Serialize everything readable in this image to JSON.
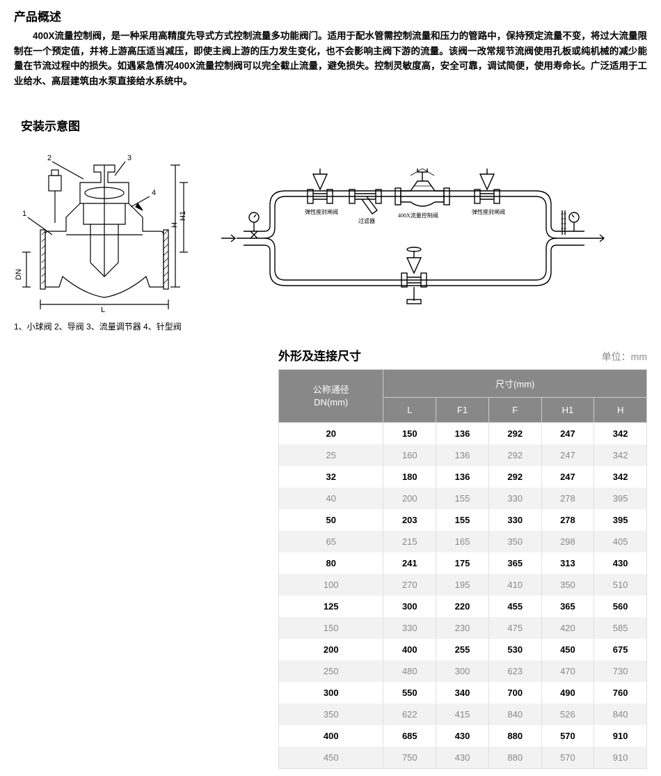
{
  "overview": {
    "title": "产品概述",
    "text": "400X流量控制阀，是一种采用高精度先导式方式控制流量多功能阀门。适用于配水管需控制流量和压力的管路中，保持预定流量不变，将过大流量限制在一个预定值，并将上游高压适当减压，即使主阀上游的压力发生变化，也不会影响主阀下游的流量。该阀一改常规节流阀使用孔板或纯机械的减少能量在节流过程中的损失。如遇紧急情况400X流量控制阀可以完全截止流量，避免损失。控制灵敏度高，安全可靠，调试简便，使用寿命长。广泛适用于工业给水、高层建筑由水泵直接给水系统中。"
  },
  "install": {
    "title": "安装示意图",
    "left_caption": "1、小球阀 2、导阀 3、流量调节器 4、针型阀",
    "left_labels": {
      "n1": "1",
      "n2": "2",
      "n3": "3",
      "n4": "4",
      "dn": "DN",
      "h": "H",
      "h1": "H1",
      "l": "L"
    },
    "right_labels": {
      "seal1": "弹性座封闸阀",
      "filter": "过滤器",
      "main": "400X流量控制阀",
      "seal2": "弹性座封闸阀"
    }
  },
  "dimensions": {
    "title": "外形及连接尺寸",
    "unit": "单位：mm",
    "header_dn": "公称通径\nDN(mm)",
    "header_size": "尺寸(mm)",
    "columns": [
      "L",
      "F1",
      "F",
      "H1",
      "H"
    ],
    "rows": [
      [
        "20",
        "150",
        "136",
        "292",
        "247",
        "342"
      ],
      [
        "25",
        "160",
        "136",
        "292",
        "247",
        "342"
      ],
      [
        "32",
        "180",
        "136",
        "292",
        "247",
        "342"
      ],
      [
        "40",
        "200",
        "155",
        "330",
        "278",
        "395"
      ],
      [
        "50",
        "203",
        "155",
        "330",
        "278",
        "395"
      ],
      [
        "65",
        "215",
        "165",
        "350",
        "298",
        "405"
      ],
      [
        "80",
        "241",
        "175",
        "365",
        "313",
        "430"
      ],
      [
        "100",
        "270",
        "195",
        "410",
        "350",
        "510"
      ],
      [
        "125",
        "300",
        "220",
        "455",
        "365",
        "560"
      ],
      [
        "150",
        "330",
        "230",
        "475",
        "420",
        "585"
      ],
      [
        "200",
        "400",
        "255",
        "530",
        "450",
        "675"
      ],
      [
        "250",
        "480",
        "300",
        "623",
        "470",
        "730"
      ],
      [
        "300",
        "550",
        "340",
        "700",
        "490",
        "760"
      ],
      [
        "350",
        "622",
        "415",
        "840",
        "526",
        "840"
      ],
      [
        "400",
        "685",
        "430",
        "880",
        "570",
        "910"
      ],
      [
        "450",
        "750",
        "430",
        "880",
        "570",
        "910"
      ]
    ]
  },
  "styling": {
    "header_bg": "#888888",
    "header_fg": "#ffffff",
    "row_odd_bg": "#ffffff",
    "row_even_bg": "#f2f2f2",
    "row_even_fg": "#888888",
    "border_color": "#e0e0e0",
    "title_fontsize": 17,
    "body_fontsize": 13.5,
    "table_fontsize": 13
  }
}
